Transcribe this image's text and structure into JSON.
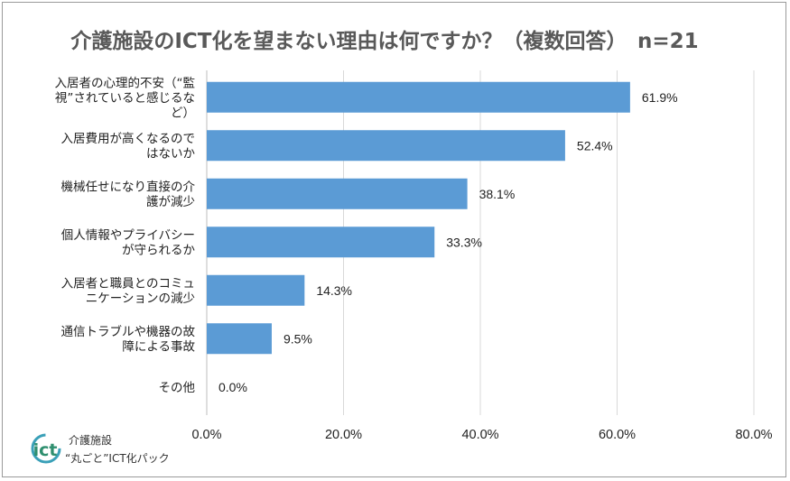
{
  "chart_data": {
    "type": "bar",
    "orientation": "horizontal",
    "title": "介護施設のICT化を望まない理由は何ですか？（複数回答）　n=21",
    "categories": [
      [
        "入居者の心理的不安（“監",
        "視”されていると感じるな",
        "ど）"
      ],
      [
        "入居費用が高くなるので",
        "はないか"
      ],
      [
        "機械任せになり直接の介",
        "護が減少"
      ],
      [
        "個人情報やプライバシー",
        "が守られるか"
      ],
      [
        "入居者と職員とのコミュ",
        "ニケーションの減少"
      ],
      [
        "通信トラブルや機器の故",
        "障による事故"
      ],
      [
        "その他"
      ]
    ],
    "values": [
      61.9,
      52.4,
      38.1,
      33.3,
      14.3,
      9.5,
      0.0
    ],
    "data_labels": [
      "61.9%",
      "52.4%",
      "38.1%",
      "33.3%",
      "14.3%",
      "9.5%",
      "0.0%"
    ],
    "xlim": [
      0,
      80
    ],
    "x_ticks": [
      0,
      20,
      40,
      60,
      80
    ],
    "x_tick_labels": [
      "0.0%",
      "20.0%",
      "40.0%",
      "60.0%",
      "80.0%"
    ],
    "grid": true,
    "bar_color": "#5b9bd5"
  },
  "logo": {
    "mark": "ict",
    "line1": "介護施設",
    "line2": "“丸ごと”ICT化パック"
  }
}
